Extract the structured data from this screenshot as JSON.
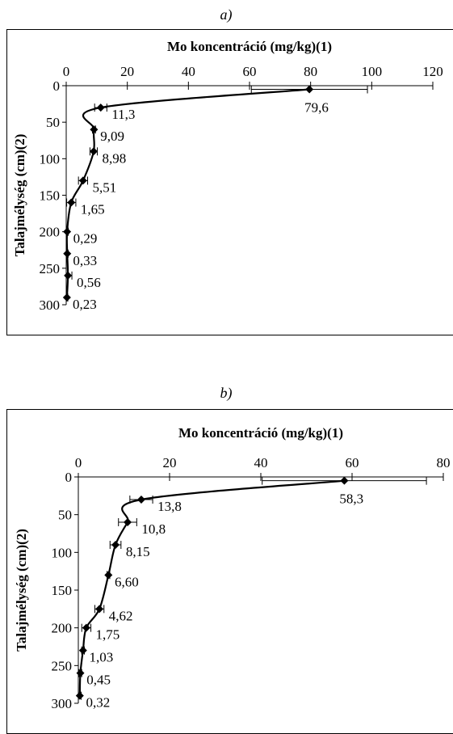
{
  "chart_data": [
    {
      "type": "line",
      "panel_label": "a)",
      "title": "Mo koncentráció (mg/kg)(1)",
      "ylabel": "Talajmélység (cm)(2)",
      "xlim": [
        0,
        120
      ],
      "ylim": [
        0,
        300
      ],
      "x_ticks": [
        "0",
        "20",
        "40",
        "60",
        "80",
        "100",
        "120"
      ],
      "y_ticks": [
        "0",
        "50",
        "100",
        "150",
        "200",
        "250",
        "300"
      ],
      "y_inverted": true,
      "x_axis_position": "top",
      "series_color": "#000000",
      "points": [
        {
          "depth": 5,
          "value": 79.6,
          "label": "79,6",
          "err": 19
        },
        {
          "depth": 30,
          "value": 11.3,
          "label": "11,3",
          "err": 2
        },
        {
          "depth": 60,
          "value": 9.09,
          "label": "9,09",
          "err": 0.5
        },
        {
          "depth": 90,
          "value": 8.98,
          "label": "8,98",
          "err": 1.2
        },
        {
          "depth": 130,
          "value": 5.51,
          "label": "5,51",
          "err": 1.5
        },
        {
          "depth": 160,
          "value": 1.65,
          "label": "1,65",
          "err": 1.5
        },
        {
          "depth": 200,
          "value": 0.29,
          "label": "0,29",
          "err": 0.4
        },
        {
          "depth": 230,
          "value": 0.33,
          "label": "0,33",
          "err": 0.3
        },
        {
          "depth": 260,
          "value": 0.56,
          "label": "0,56",
          "err": 1.3
        },
        {
          "depth": 290,
          "value": 0.23,
          "label": "0,23",
          "err": 0.3
        }
      ]
    },
    {
      "type": "line",
      "panel_label": "b)",
      "title": "Mo koncentráció (mg/kg)(1)",
      "ylabel": "Talajmélység (cm)(2)",
      "xlim": [
        0,
        80
      ],
      "ylim": [
        0,
        300
      ],
      "x_ticks": [
        "0",
        "20",
        "40",
        "60",
        "80"
      ],
      "y_ticks": [
        "0",
        "50",
        "100",
        "150",
        "200",
        "250",
        "300"
      ],
      "y_inverted": true,
      "x_axis_position": "top",
      "series_color": "#000000",
      "points": [
        {
          "depth": 5,
          "value": 58.3,
          "label": "58,3",
          "err": 18
        },
        {
          "depth": 30,
          "value": 13.8,
          "label": "13,8",
          "err": 2.5
        },
        {
          "depth": 60,
          "value": 10.8,
          "label": "10,8",
          "err": 2
        },
        {
          "depth": 90,
          "value": 8.15,
          "label": "8,15",
          "err": 1.2
        },
        {
          "depth": 130,
          "value": 6.6,
          "label": "6,60",
          "err": 0.3
        },
        {
          "depth": 175,
          "value": 4.62,
          "label": "4,62",
          "err": 1
        },
        {
          "depth": 200,
          "value": 1.75,
          "label": "1,75",
          "err": 1
        },
        {
          "depth": 230,
          "value": 1.03,
          "label": "1,03",
          "err": 0.3
        },
        {
          "depth": 260,
          "value": 0.45,
          "label": "0,45",
          "err": 0.3
        },
        {
          "depth": 290,
          "value": 0.32,
          "label": "0,32",
          "err": 0.3
        }
      ]
    }
  ]
}
